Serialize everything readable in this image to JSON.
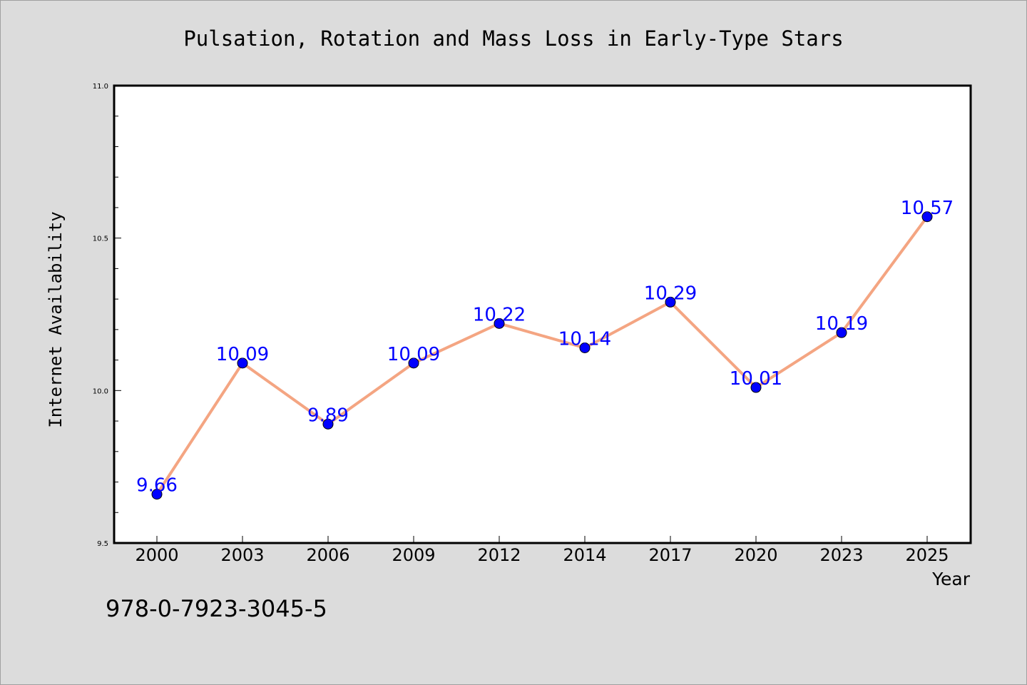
{
  "isbn": "978-0-7923-3045-5",
  "colors": {
    "line": "#f4a582",
    "marker": "#0000ff",
    "label": "#0000ff",
    "background": "#dcdcdc",
    "plot_background": "#ffffff"
  },
  "chart_data": {
    "type": "line",
    "title": "Pulsation, Rotation and Mass Loss in Early-Type Stars",
    "xlabel": "Year",
    "ylabel": "Internet Availability",
    "categories": [
      "2000",
      "2003",
      "2006",
      "2009",
      "2012",
      "2014",
      "2017",
      "2020",
      "2023",
      "2025"
    ],
    "series": [
      {
        "values": [
          9.66,
          10.09,
          9.89,
          10.09,
          10.22,
          10.14,
          10.29,
          10.01,
          10.19,
          10.57
        ],
        "labels": [
          "9.66",
          "10.09",
          "9.89",
          "10.09",
          "10.22",
          "10.14",
          "10.29",
          "10.01",
          "10.19",
          "10.57"
        ]
      }
    ],
    "ylim": [
      9.5,
      11.0
    ],
    "yticks": [
      "9.5",
      "10.0",
      "10.5",
      "11.0"
    ],
    "grid": false,
    "legend": "none"
  }
}
